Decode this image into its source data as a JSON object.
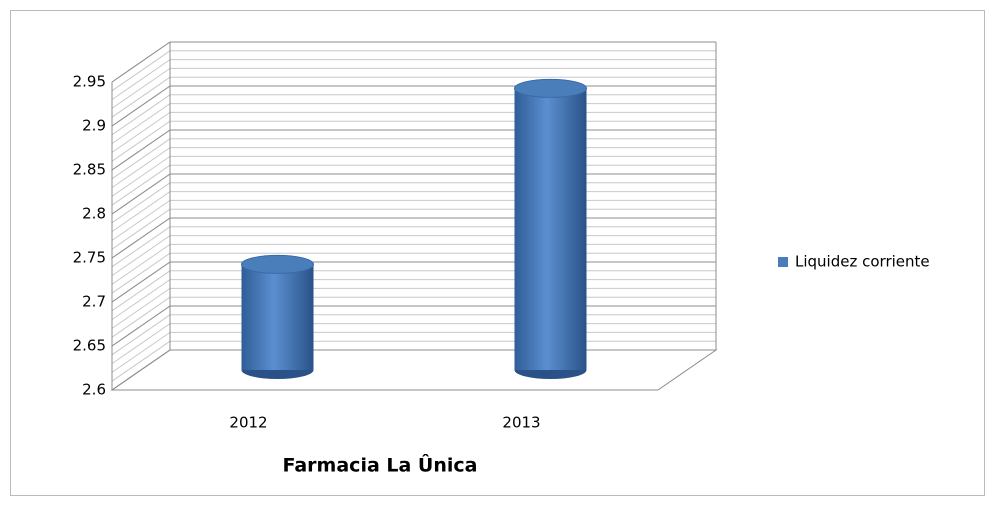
{
  "chart_data": {
    "type": "bar",
    "title": "Farmacia La Ûnica",
    "categories": [
      "2012",
      "2013"
    ],
    "series": [
      {
        "name": "Liquidez corriente",
        "color": "#4a7ebb",
        "values": [
          2.72,
          2.92
        ]
      }
    ],
    "ylim": [
      2.6,
      2.95
    ],
    "yticks": [
      2.6,
      2.65,
      2.7,
      2.75,
      2.8,
      2.85,
      2.9,
      2.95
    ],
    "grid": true,
    "legend": "right"
  }
}
